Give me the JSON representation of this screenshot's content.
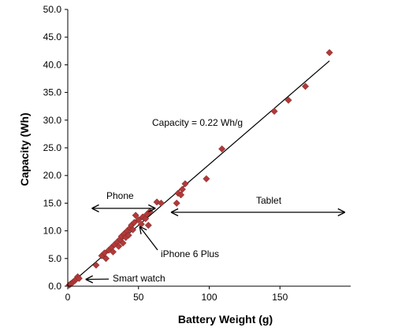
{
  "chart_data": {
    "type": "scatter",
    "title": "",
    "xlabel": "Battery Weight (g)",
    "ylabel": "Capacity (Wh)",
    "xlim": [
      0,
      200
    ],
    "ylim": [
      0,
      50
    ],
    "xticks": [
      0,
      50,
      100,
      150
    ],
    "yticks": [
      0,
      5,
      10,
      15,
      20,
      25,
      30,
      35,
      40,
      45,
      50
    ],
    "ytick_labels": [
      "0.0",
      "5.0",
      "10.0",
      "15.0",
      "20.0",
      "25.0",
      "30.0",
      "35.0",
      "40.0",
      "45.0",
      "50.0"
    ],
    "grid": false,
    "marker_color": "#b03a3a",
    "points": [
      {
        "x": 1,
        "y": 0.2
      },
      {
        "x": 2,
        "y": 0.4
      },
      {
        "x": 3,
        "y": 0.6
      },
      {
        "x": 4,
        "y": 0.8
      },
      {
        "x": 5,
        "y": 1.0
      },
      {
        "x": 6,
        "y": 1.3
      },
      {
        "x": 7,
        "y": 1.7
      },
      {
        "x": 8,
        "y": 1.4
      },
      {
        "x": 20,
        "y": 3.8
      },
      {
        "x": 24,
        "y": 5.5
      },
      {
        "x": 26,
        "y": 6.0
      },
      {
        "x": 27,
        "y": 5.0
      },
      {
        "x": 29,
        "y": 6.5
      },
      {
        "x": 31,
        "y": 7.0
      },
      {
        "x": 32,
        "y": 6.2
      },
      {
        "x": 33,
        "y": 7.5
      },
      {
        "x": 35,
        "y": 8.0
      },
      {
        "x": 36,
        "y": 7.2
      },
      {
        "x": 37,
        "y": 8.5
      },
      {
        "x": 38,
        "y": 9.0
      },
      {
        "x": 39,
        "y": 7.8
      },
      {
        "x": 40,
        "y": 9.5
      },
      {
        "x": 41,
        "y": 8.8
      },
      {
        "x": 42,
        "y": 10.0
      },
      {
        "x": 43,
        "y": 9.2
      },
      {
        "x": 44,
        "y": 10.5
      },
      {
        "x": 45,
        "y": 11.0
      },
      {
        "x": 46,
        "y": 10.2
      },
      {
        "x": 47,
        "y": 11.5
      },
      {
        "x": 48,
        "y": 12.8
      },
      {
        "x": 50,
        "y": 12.0
      },
      {
        "x": 52,
        "y": 11.2
      },
      {
        "x": 53,
        "y": 12.5
      },
      {
        "x": 55,
        "y": 12.2
      },
      {
        "x": 56,
        "y": 13.0
      },
      {
        "x": 57,
        "y": 11.0
      },
      {
        "x": 58,
        "y": 13.5
      },
      {
        "x": 63,
        "y": 15.2
      },
      {
        "x": 66,
        "y": 15.0
      },
      {
        "x": 77,
        "y": 15.0
      },
      {
        "x": 78,
        "y": 16.8
      },
      {
        "x": 80,
        "y": 16.5
      },
      {
        "x": 81,
        "y": 17.5
      },
      {
        "x": 83,
        "y": 18.5
      },
      {
        "x": 98,
        "y": 19.4
      },
      {
        "x": 109,
        "y": 24.8
      },
      {
        "x": 146,
        "y": 31.6
      },
      {
        "x": 156,
        "y": 33.6
      },
      {
        "x": 168,
        "y": 36.1
      },
      {
        "x": 185,
        "y": 42.2
      }
    ],
    "trendline": {
      "slope": 0.22,
      "x_range": [
        0,
        185
      ]
    },
    "annotations": {
      "equation": "Capacity = 0.22 Wh/g",
      "phone": "Phone",
      "tablet": "Tablet",
      "iphone": "iPhone 6 Plus",
      "smartwatch": "Smart watch"
    },
    "ranges": {
      "phone": [
        17,
        62
      ],
      "tablet": [
        73,
        196
      ]
    },
    "pointers": {
      "iphone": [
        48,
        11.5
      ],
      "smartwatch": [
        11,
        0.8
      ]
    }
  }
}
